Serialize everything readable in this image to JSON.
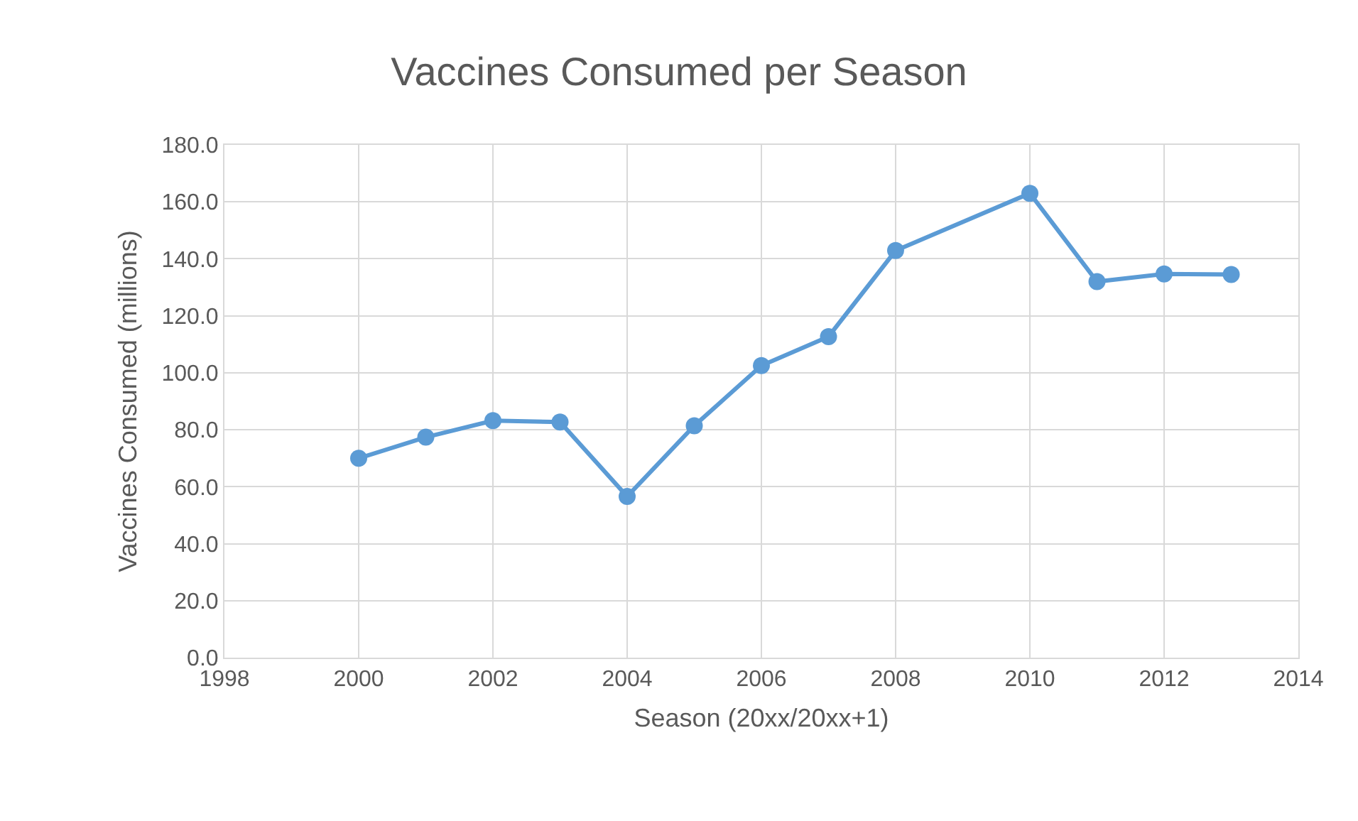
{
  "chart_data": {
    "type": "line",
    "title": "Vaccines Consumed per Season",
    "xlabel": "Season (20xx/20xx+1)",
    "ylabel": "Vaccines Consumed (millions)",
    "x": [
      2000,
      2001,
      2002,
      2003,
      2004,
      2005,
      2006,
      2007,
      2008,
      2010,
      2011,
      2012,
      2013
    ],
    "series": [
      {
        "color": "#5b9bd5",
        "values": [
          70.0,
          77.4,
          83.2,
          82.7,
          56.6,
          81.4,
          102.5,
          112.7,
          142.9,
          163.0,
          132.0,
          134.7,
          134.5
        ]
      }
    ],
    "xlim": [
      1998,
      2014
    ],
    "xticks": [
      1998,
      2000,
      2002,
      2004,
      2006,
      2008,
      2010,
      2012,
      2014
    ],
    "ylim": [
      0,
      180
    ],
    "yticks": [
      {
        "value": 0,
        "label": "0.0"
      },
      {
        "value": 20,
        "label": "20.0"
      },
      {
        "value": 40,
        "label": "40.0"
      },
      {
        "value": 60,
        "label": "60.0"
      },
      {
        "value": 80,
        "label": "80.0"
      },
      {
        "value": 100,
        "label": "100.0"
      },
      {
        "value": 120,
        "label": "120.0"
      },
      {
        "value": 140,
        "label": "140.0"
      },
      {
        "value": 160,
        "label": "160.0"
      },
      {
        "value": 180,
        "label": "180.0"
      }
    ],
    "grid": true,
    "marker": "circle",
    "line_style": "solid"
  }
}
